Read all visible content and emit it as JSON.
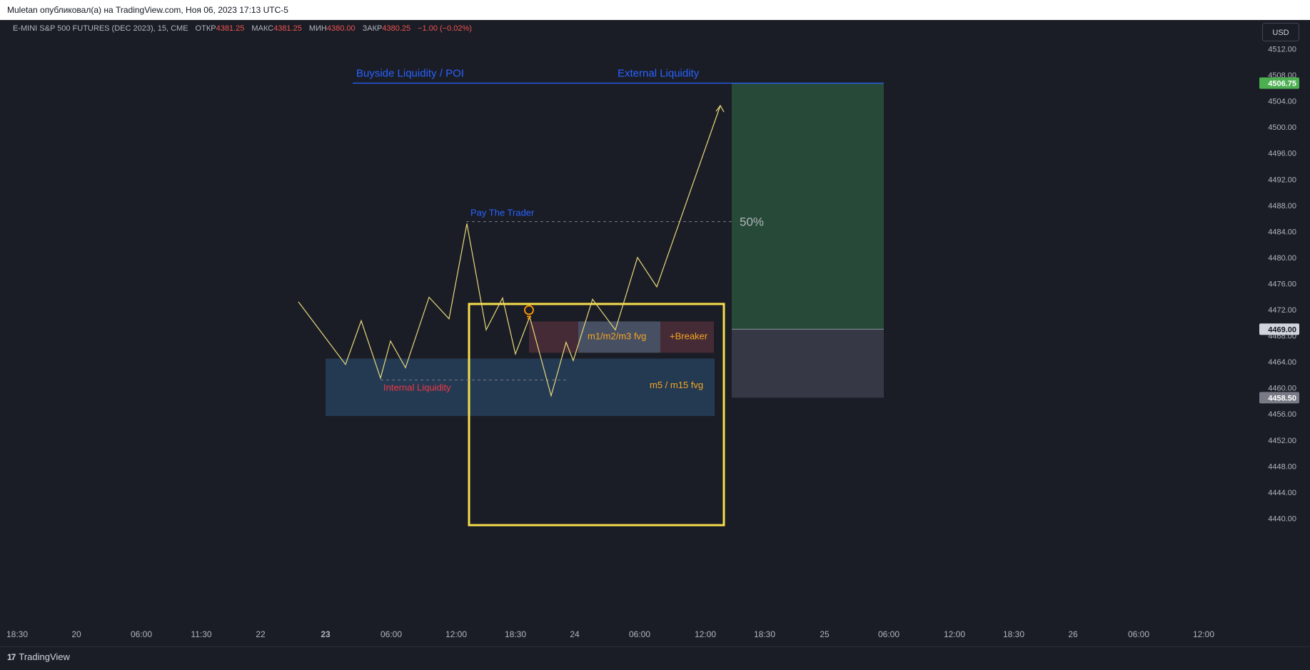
{
  "publisher_line": "Muletan опубликовал(а) на TradingView.com, Ноя 06, 2023 17:13 UTC-5",
  "legend": {
    "symbol": "E-MINI S&P 500 FUTURES (DEC 2023), 15, CME",
    "open_label": "ОТКР",
    "open_value": "4381.25",
    "high_label": "МАКС",
    "high_value": "4381.25",
    "low_label": "МИН",
    "low_value": "4380.00",
    "close_label": "ЗАКР",
    "close_value": "4380.25",
    "change_value": "−1.00 (−0.02%)"
  },
  "currency_button": "USD",
  "footer": {
    "brand": "TradingView",
    "logo_icon": "tradingview-logo-icon"
  },
  "colors": {
    "background": "#1a1d26",
    "price_line": "#e8d97a",
    "buyside_line": "#2962ff",
    "target_box": "#264a37",
    "stop_box": "#363945",
    "fvg_zone": "#27405a",
    "breaker_zone": "#4a2e37",
    "highlight_box": "#f7de4a",
    "internal_liquidity": "#f23645",
    "fvg_text": "#f5a623",
    "target_badge": "#4caf50",
    "stop_badge": "#787b86",
    "alert_icon": "#ff9800"
  },
  "chart_data": {
    "type": "line",
    "ylim": [
      4436.0,
      4514.0
    ],
    "y_ticks": [
      4440.0,
      4444.0,
      4448.0,
      4452.0,
      4456.0,
      4460.0,
      4464.0,
      4468.0,
      4472.0,
      4476.0,
      4480.0,
      4484.0,
      4488.0,
      4492.0,
      4496.0,
      4500.0,
      4504.0,
      4508.0,
      4512.0
    ],
    "y_tick_labels": [
      "4440.00",
      "4444.00",
      "4448.00",
      "4452.00",
      "4456.00",
      "4460.00",
      "4464.00",
      "4468.00",
      "4472.00",
      "4476.00",
      "4480.00",
      "4484.00",
      "4488.00",
      "4492.00",
      "4496.00",
      "4500.00",
      "4504.00",
      "4508.00",
      "4512.00"
    ],
    "x_tick_labels": [
      "18:30",
      "20",
      "06:00",
      "11:30",
      "22",
      "23",
      "06:00",
      "12:00",
      "18:30",
      "24",
      "06:00",
      "12:00",
      "18:30",
      "25",
      "06:00",
      "12:00",
      "18:30",
      "26",
      "06:00",
      "12:00"
    ],
    "price_badges": [
      {
        "label": "4506.75",
        "value": 4506.75,
        "role": "target"
      },
      {
        "label": "4469.00",
        "value": 4469.0,
        "role": "entry"
      },
      {
        "label": "4458.50",
        "value": 4458.5,
        "role": "stop"
      }
    ],
    "price_path_y": [
      4473.2,
      4463.6,
      4470.3,
      4461.5,
      4467.2,
      4463.1,
      4473.9,
      4470.6,
      4485.2,
      4468.9,
      4473.8,
      4465.2,
      4470.9,
      4458.8,
      4467.0,
      4464.2,
      4473.6,
      4468.9,
      4480.0,
      4475.5,
      4503.3
    ],
    "annotations": {
      "buyside_liquidity": "Buyside Liquidity / POI",
      "external_liquidity": "External Liquidity",
      "pay_the_trader": "Pay The Trader",
      "fifty_percent": "50%",
      "internal_liquidity": "Internal Liquidity",
      "ltf_fvg": "m1/m2/m3 fvg",
      "breaker": "+Breaker",
      "htf_fvg": "m5 / m15 fvg"
    },
    "levels": {
      "buyside_liquidity": 4506.75,
      "pay_the_trader": 4485.5,
      "internal_liquidity": 4461.2
    },
    "zones": {
      "htf_fvg": [
        4455.7,
        4464.5
      ],
      "ltf_fvg": [
        4465.4,
        4470.2
      ],
      "target": [
        4469.0,
        4506.75
      ],
      "stop": [
        4458.5,
        4469.0
      ]
    },
    "alert_icon": "lightbulb-icon"
  }
}
